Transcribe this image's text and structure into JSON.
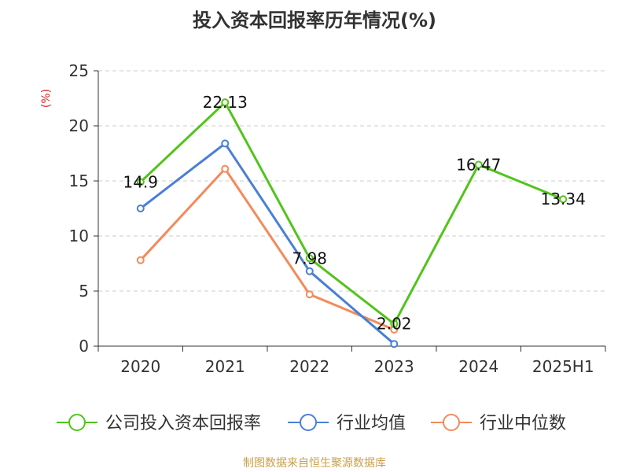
{
  "title": "投入资本回报率历年情况(%)",
  "footer": "制图数据来自恒生聚源数据库",
  "chart_data": {
    "type": "line",
    "title": "投入资本回报率历年情况(%)",
    "ylabel": "(%)",
    "xlabel": "",
    "categories": [
      "2020",
      "2021",
      "2022",
      "2023",
      "2024",
      "2025H1"
    ],
    "ylim": [
      0,
      25
    ],
    "yticks": [
      0,
      5,
      10,
      15,
      20,
      25
    ],
    "grid": true,
    "legend_position": "bottom",
    "series": [
      {
        "name": "公司投入资本回报率",
        "color": "#52c41a",
        "values": [
          14.9,
          22.13,
          7.98,
          2.02,
          16.47,
          13.34
        ],
        "labels": [
          "14.9",
          "22.13",
          "7.98",
          "2.02",
          "16.47",
          "13.34"
        ]
      },
      {
        "name": "行业均值",
        "color": "#4a7fd6",
        "values": [
          12.5,
          18.4,
          6.8,
          0.2,
          null,
          null
        ]
      },
      {
        "name": "行业中位数",
        "color": "#f48a5a",
        "values": [
          7.8,
          16.1,
          4.7,
          1.5,
          null,
          null
        ]
      }
    ]
  }
}
